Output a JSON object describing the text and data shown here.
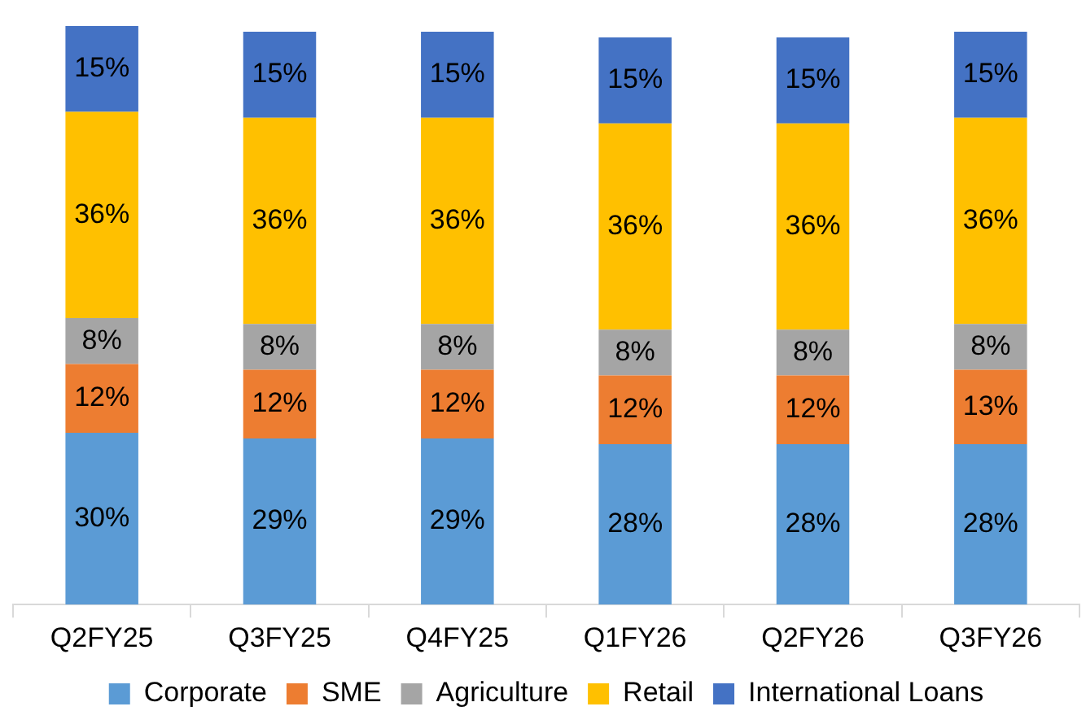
{
  "chart_data": {
    "type": "bar",
    "stacked": true,
    "legend": "bottom",
    "grid": false,
    "categories": [
      "Q2FY25",
      "Q3FY25",
      "Q4FY25",
      "Q1FY26",
      "Q2FY26",
      "Q3FY26"
    ],
    "series": [
      {
        "name": "Corporate",
        "color": "#5b9bd5",
        "values": [
          30,
          29,
          29,
          28,
          28,
          28
        ],
        "value_labels": [
          "30%",
          "29%",
          "29%",
          "28%",
          "28%",
          "28%"
        ]
      },
      {
        "name": "SME",
        "color": "#ed7d31",
        "values": [
          12,
          12,
          12,
          12,
          12,
          13
        ],
        "value_labels": [
          "12%",
          "12%",
          "12%",
          "12%",
          "12%",
          "13%"
        ]
      },
      {
        "name": "Agriculture",
        "color": "#a5a5a5",
        "values": [
          8,
          8,
          8,
          8,
          8,
          8
        ],
        "value_labels": [
          "8%",
          "8%",
          "8%",
          "8%",
          "8%",
          "8%"
        ]
      },
      {
        "name": "Retail",
        "color": "#ffc000",
        "values": [
          36,
          36,
          36,
          36,
          36,
          36
        ],
        "value_labels": [
          "36%",
          "36%",
          "36%",
          "36%",
          "36%",
          "36%"
        ]
      },
      {
        "name": "International Loans",
        "color": "#4472c4",
        "values": [
          15,
          15,
          15,
          15,
          15,
          15
        ],
        "value_labels": [
          "15%",
          "15%",
          "15%",
          "15%",
          "15%",
          "15%"
        ]
      }
    ]
  }
}
